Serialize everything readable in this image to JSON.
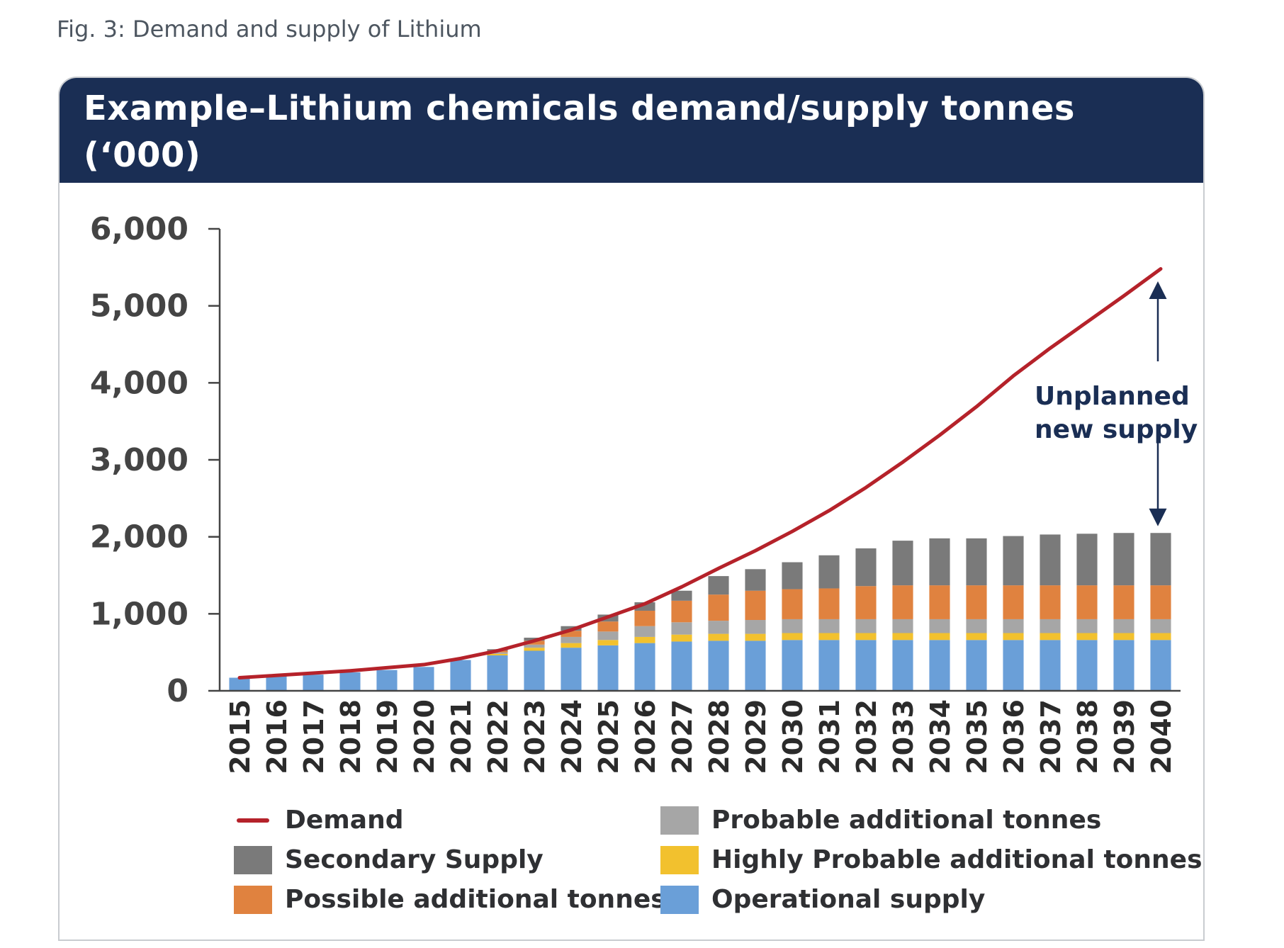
{
  "caption": "Fig. 3: Demand and supply of Lithium",
  "chart_data": {
    "type": "bar",
    "stacked": true,
    "title": "Example–Lithium chemicals demand/supply tonnes (‘000)",
    "xlabel": "",
    "ylabel": "",
    "ylim": [
      0,
      6000
    ],
    "yticks": [
      0,
      1000,
      2000,
      3000,
      4000,
      5000,
      6000
    ],
    "ytick_labels": [
      "0",
      "1,000",
      "2,000",
      "3,000",
      "4,000",
      "5,000",
      "6,000"
    ],
    "categories": [
      "2015",
      "2016",
      "2017",
      "2018",
      "2019",
      "2020",
      "2021",
      "2022",
      "2023",
      "2024",
      "2025",
      "2026",
      "2027",
      "2028",
      "2029",
      "2030",
      "2031",
      "2032",
      "2033",
      "2034",
      "2035",
      "2036",
      "2037",
      "2038",
      "2039",
      "2040"
    ],
    "series": [
      {
        "name": "Operational supply",
        "color": "#6a9fd8",
        "values": [
          170,
          190,
          210,
          240,
          270,
          310,
          400,
          460,
          520,
          560,
          590,
          620,
          640,
          650,
          650,
          660,
          660,
          660,
          660,
          660,
          660,
          660,
          660,
          660,
          660,
          660
        ]
      },
      {
        "name": "Highly Probable additional tonnes",
        "color": "#f2c12e",
        "values": [
          0,
          0,
          0,
          0,
          0,
          0,
          0,
          20,
          40,
          60,
          70,
          80,
          90,
          90,
          90,
          90,
          90,
          90,
          90,
          90,
          90,
          90,
          90,
          90,
          90,
          90
        ]
      },
      {
        "name": "Probable additional tonnes",
        "color": "#a6a6a6",
        "values": [
          0,
          0,
          0,
          0,
          0,
          0,
          0,
          20,
          40,
          80,
          110,
          140,
          160,
          170,
          180,
          180,
          180,
          180,
          180,
          180,
          180,
          180,
          180,
          180,
          180,
          180
        ]
      },
      {
        "name": "Possible additional tonnes",
        "color": "#e0823f",
        "values": [
          0,
          0,
          0,
          0,
          0,
          0,
          0,
          20,
          50,
          80,
          130,
          200,
          280,
          340,
          380,
          390,
          400,
          430,
          440,
          440,
          440,
          440,
          440,
          440,
          440,
          440
        ]
      },
      {
        "name": "Secondary Supply",
        "color": "#7a7a7a",
        "values": [
          0,
          0,
          0,
          0,
          0,
          0,
          0,
          20,
          40,
          60,
          90,
          110,
          130,
          240,
          280,
          350,
          430,
          490,
          580,
          610,
          610,
          640,
          660,
          670,
          680,
          680
        ]
      }
    ],
    "line": {
      "name": "Demand",
      "color": "#b5222a",
      "values": [
        170,
        200,
        230,
        260,
        300,
        340,
        420,
        520,
        650,
        790,
        960,
        1130,
        1350,
        1590,
        1820,
        2070,
        2340,
        2640,
        2970,
        3320,
        3690,
        4090,
        4450,
        4790,
        5130,
        5480
      ]
    },
    "annotation": {
      "line1": "Unplanned",
      "line2": "new supply"
    },
    "legend": {
      "position": "bottom",
      "items": [
        {
          "label": "Demand",
          "kind": "line",
          "color": "#b5222a"
        },
        {
          "label": "Secondary Supply",
          "kind": "box",
          "color": "#7a7a7a"
        },
        {
          "label": "Possible additional tonnes",
          "kind": "box",
          "color": "#e0823f"
        },
        {
          "label": "Probable additional tonnes",
          "kind": "box",
          "color": "#a6a6a6"
        },
        {
          "label": "Highly Probable additional tonnes",
          "kind": "box",
          "color": "#f2c12e"
        },
        {
          "label": "Operational supply",
          "kind": "box",
          "color": "#6a9fd8"
        }
      ]
    }
  }
}
